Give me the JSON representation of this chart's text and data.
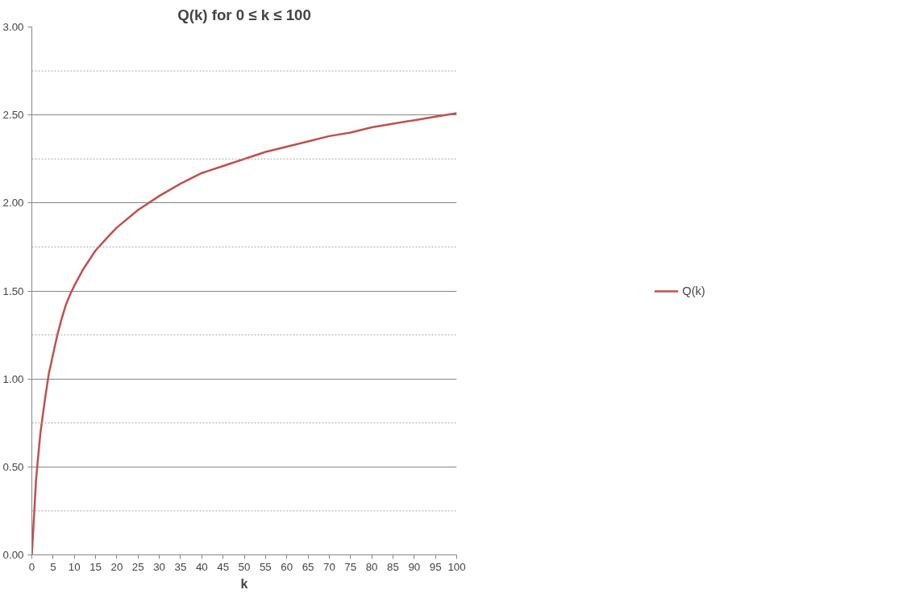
{
  "chart_data": {
    "type": "line",
    "title": "Q(k) for 0 ≤ k ≤ 100",
    "xlabel": "k",
    "x": [
      0,
      1,
      2,
      3,
      4,
      5,
      6,
      7,
      8,
      9,
      10,
      12,
      15,
      18,
      20,
      25,
      30,
      35,
      40,
      45,
      50,
      55,
      60,
      65,
      70,
      75,
      80,
      85,
      90,
      95,
      100
    ],
    "series": [
      {
        "name": "Q(k)",
        "color": "#c0504d",
        "values": [
          0,
          0.43,
          0.69,
          0.87,
          1.03,
          1.14,
          1.25,
          1.34,
          1.42,
          1.48,
          1.53,
          1.62,
          1.73,
          1.81,
          1.86,
          1.96,
          2.04,
          2.11,
          2.17,
          2.21,
          2.25,
          2.29,
          2.32,
          2.35,
          2.38,
          2.4,
          2.43,
          2.45,
          2.47,
          2.49,
          2.51
        ]
      }
    ],
    "xlim": [
      0,
      100
    ],
    "xticks": [
      0,
      5,
      10,
      15,
      20,
      25,
      30,
      35,
      40,
      45,
      50,
      55,
      60,
      65,
      70,
      75,
      80,
      85,
      90,
      95,
      100
    ],
    "ylim": [
      0,
      3
    ],
    "yticks": [
      {
        "value": 0,
        "label": "0.00"
      },
      {
        "value": 0.25,
        "label": null
      },
      {
        "value": 0.5,
        "label": "0.50"
      },
      {
        "value": 0.75,
        "label": null
      },
      {
        "value": 1,
        "label": "1.00"
      },
      {
        "value": 1.25,
        "label": null
      },
      {
        "value": 1.5,
        "label": "1.50"
      },
      {
        "value": 1.75,
        "label": null
      },
      {
        "value": 2,
        "label": "2.00"
      },
      {
        "value": 2.25,
        "label": null
      },
      {
        "value": 2.5,
        "label": "2.50"
      },
      {
        "value": 2.75,
        "label": null
      },
      {
        "value": 3,
        "label": "3.00"
      }
    ],
    "grid": "y",
    "legend": "right",
    "marker": "none",
    "line_style": "solid"
  }
}
